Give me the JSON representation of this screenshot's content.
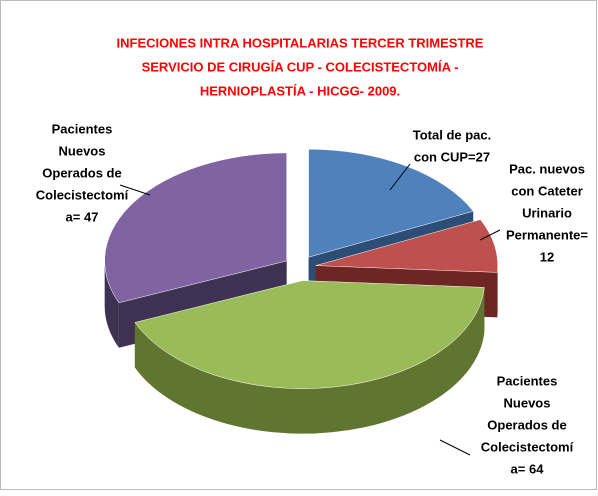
{
  "chart_data": {
    "type": "pie3d",
    "title_lines": [
      "INFECIONES INTRA HOSPITALARIAS TERCER TRIMESTRE",
      "SERVICIO DE CIRUGÍA  CUP - COLECISTECTOMÍA -",
      "HERNIOPLASTÍA - HICGG- 2009."
    ],
    "label_lines": [
      [
        "Total de pac.",
        "con CUP=27"
      ],
      [
        "Pac. nuevos",
        "con Cateter",
        "Urinario",
        "Permanente=",
        "12"
      ],
      [
        "Pacientes",
        "Nuevos",
        "Operados de",
        "Colecistectomí",
        "a= 64"
      ],
      [
        "Pacientes",
        "Nuevos",
        "Operados  de",
        "Colecistectomí",
        "a= 47"
      ]
    ],
    "values": [
      27,
      12,
      64,
      47
    ],
    "colors": [
      "#4f81bd",
      "#c0504d",
      "#9bbb59",
      "#8064a2"
    ],
    "side_colors": [
      "#2c4d75",
      "#6e2624",
      "#5f7530",
      "#3f3151"
    ]
  }
}
